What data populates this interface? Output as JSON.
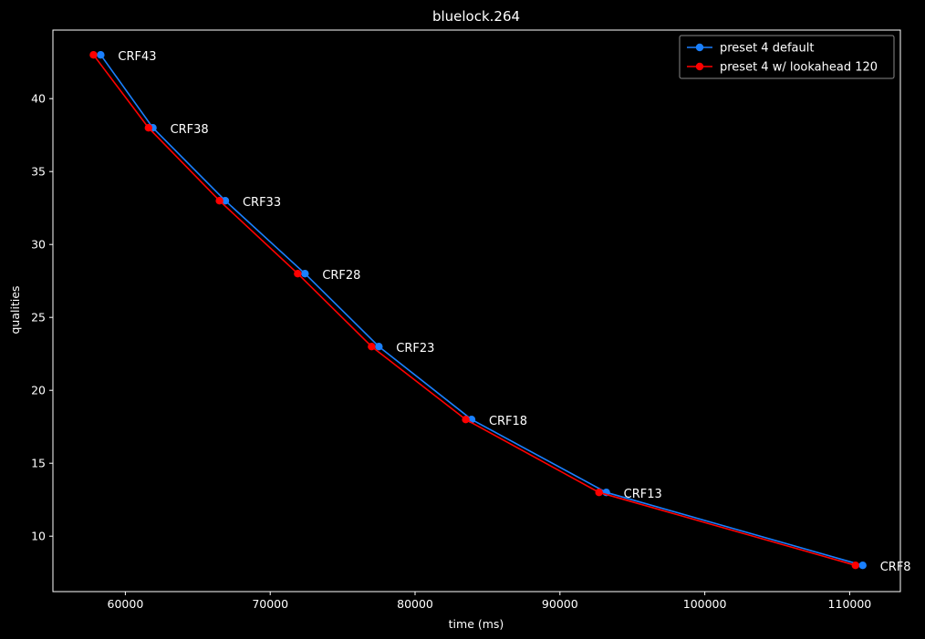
{
  "chart_data": {
    "type": "line",
    "title": "bluelock.264",
    "xlabel": "time (ms)",
    "ylabel": "qualities",
    "xlim": [
      55000,
      113500
    ],
    "ylim": [
      6.2,
      44.7
    ],
    "xticks": [
      60000,
      70000,
      80000,
      90000,
      100000,
      110000
    ],
    "yticks": [
      10,
      15,
      20,
      25,
      30,
      35,
      40
    ],
    "grid": false,
    "legend_position": "top-right",
    "series": [
      {
        "name": "preset 4 default",
        "color": "#1a80ff",
        "marker": "circle",
        "x": [
          58300,
          61900,
          66900,
          72400,
          77500,
          83900,
          93200,
          110900
        ],
        "y": [
          43,
          38,
          33,
          28,
          23,
          18,
          13,
          8
        ]
      },
      {
        "name": "preset 4 w/ lookahead 120",
        "color": "#ff0000",
        "marker": "circle",
        "x": [
          57800,
          61600,
          66500,
          71900,
          77000,
          83500,
          92700,
          110400
        ],
        "y": [
          43,
          38,
          33,
          28,
          23,
          18,
          13,
          8
        ]
      }
    ],
    "annotations": [
      {
        "text": "CRF43",
        "x": 58300,
        "y": 43
      },
      {
        "text": "CRF38",
        "x": 61900,
        "y": 38
      },
      {
        "text": "CRF33",
        "x": 66900,
        "y": 33
      },
      {
        "text": "CRF28",
        "x": 72400,
        "y": 28
      },
      {
        "text": "CRF23",
        "x": 77500,
        "y": 23
      },
      {
        "text": "CRF18",
        "x": 83900,
        "y": 18
      },
      {
        "text": "CRF13",
        "x": 93200,
        "y": 13
      },
      {
        "text": "CRF8",
        "x": 110900,
        "y": 8
      }
    ]
  }
}
